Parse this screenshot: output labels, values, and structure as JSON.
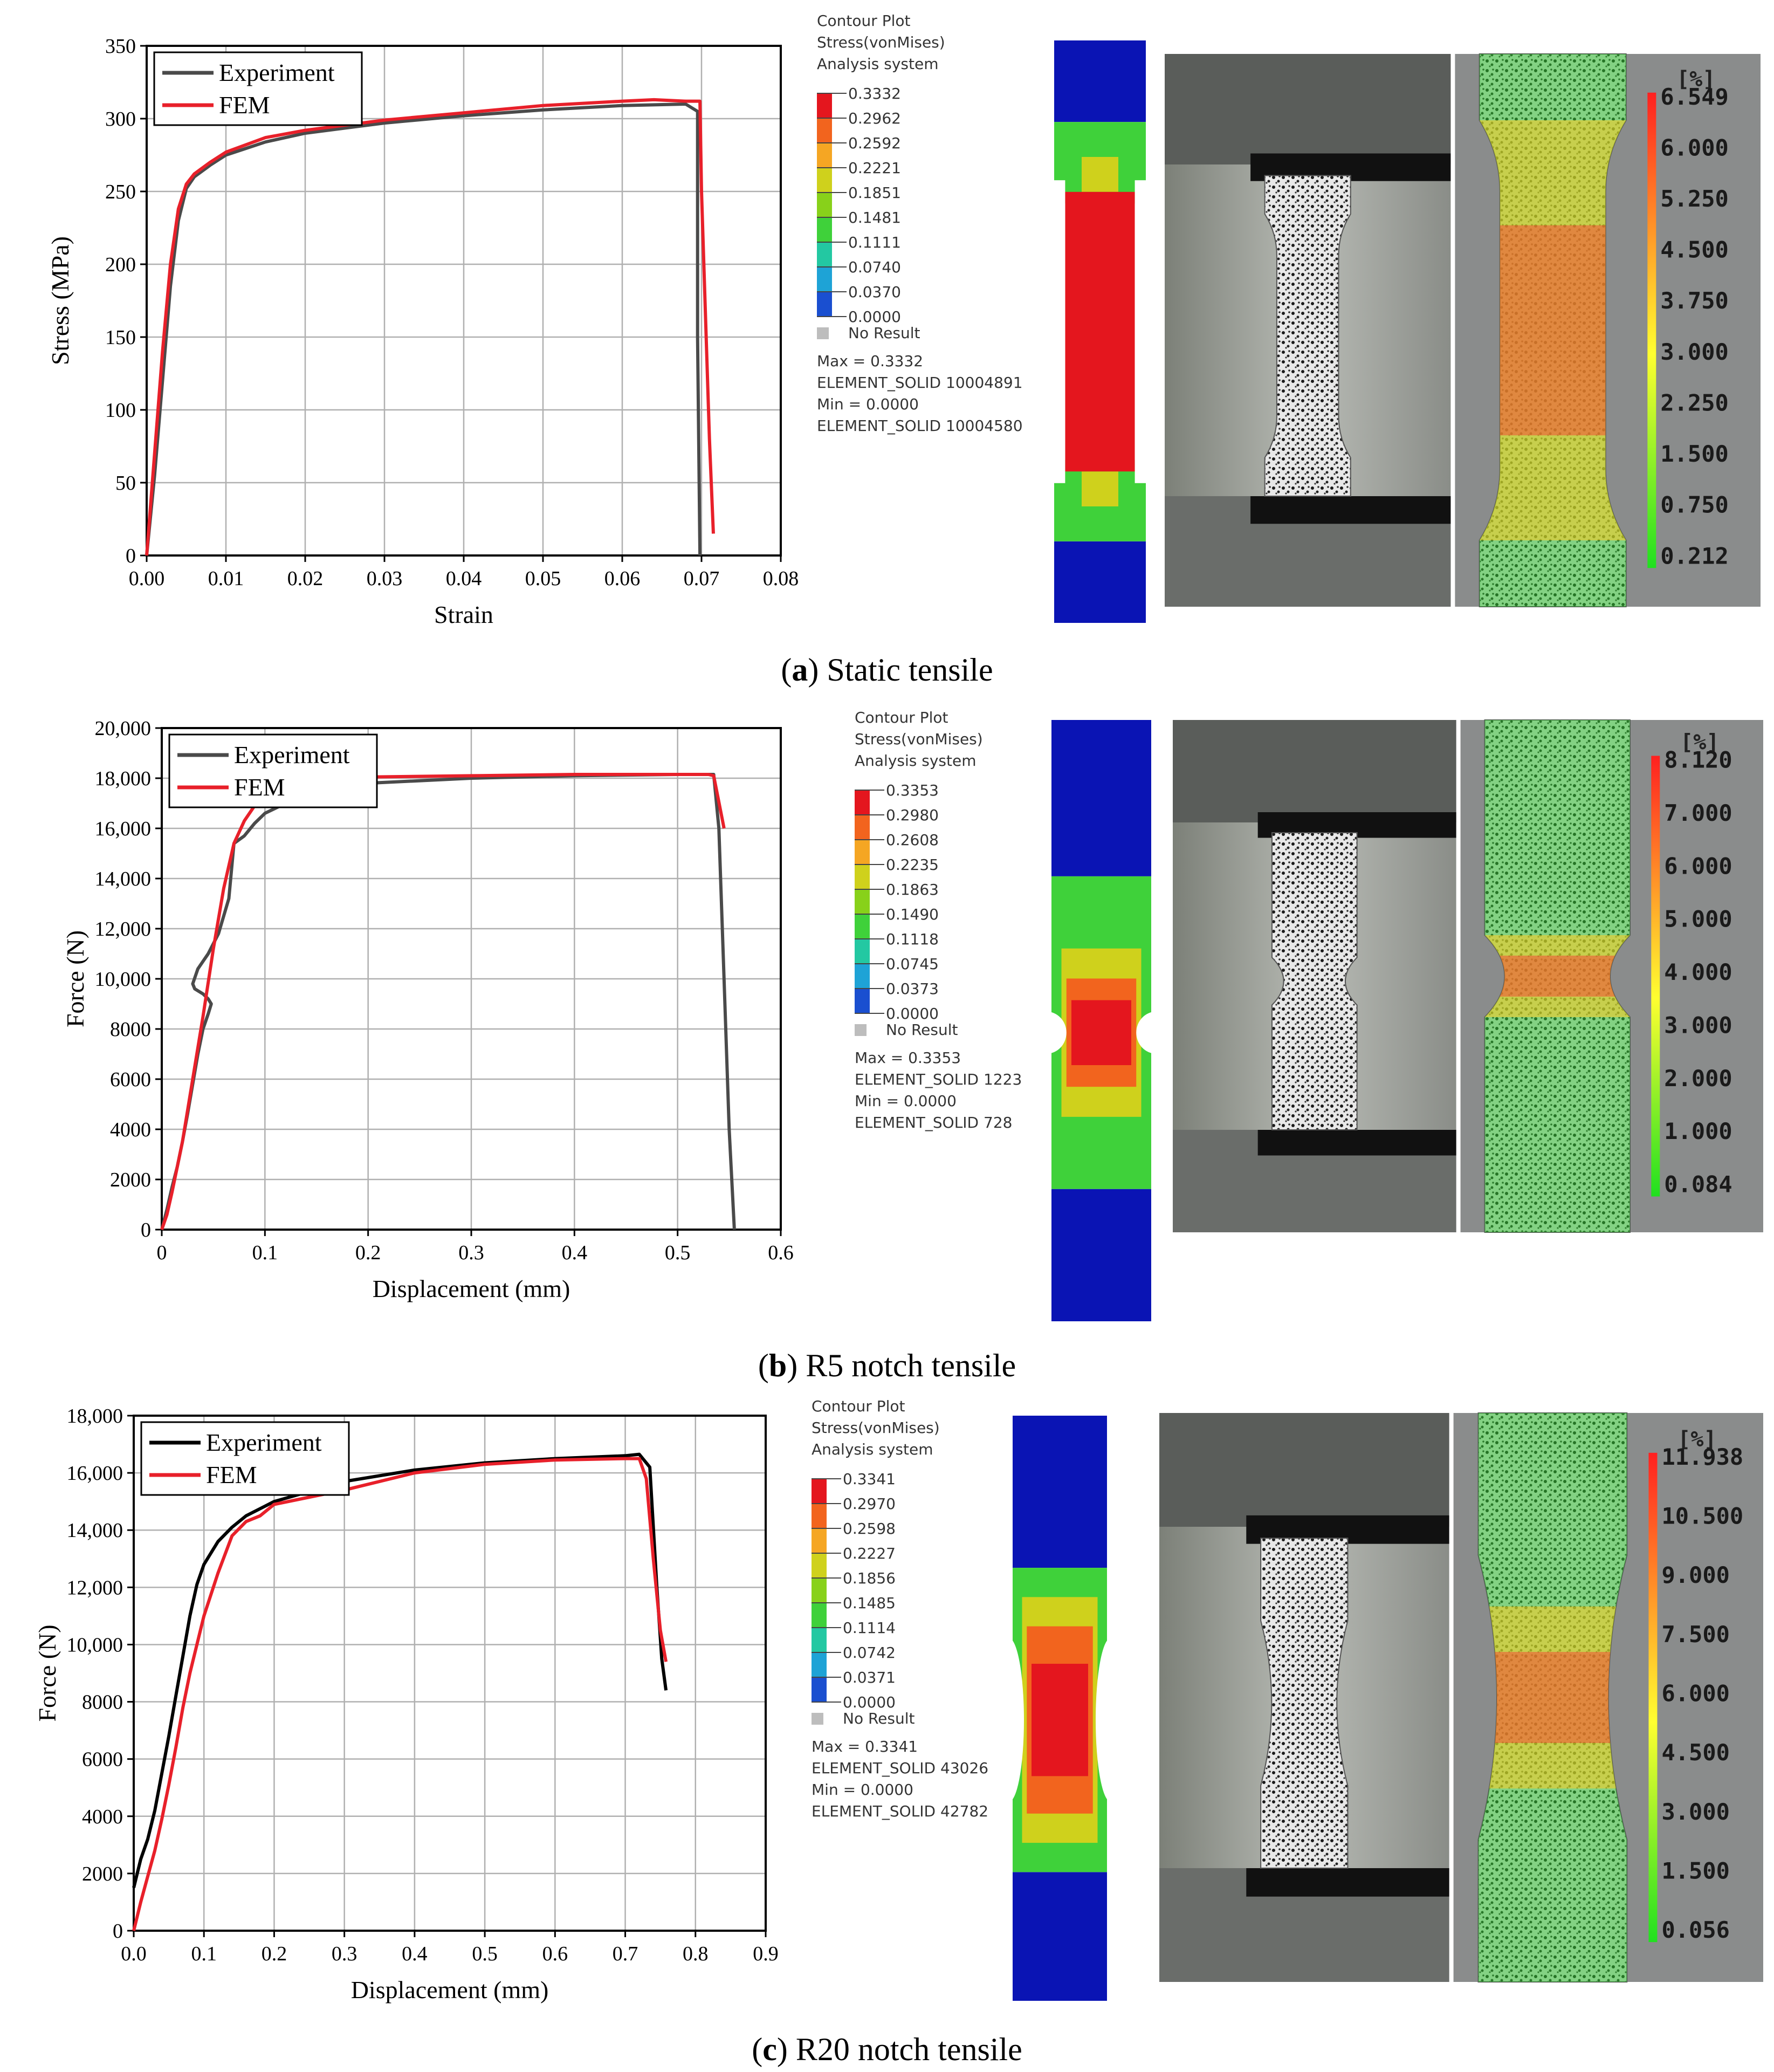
{
  "panels": [
    {
      "caption": {
        "letter": "a",
        "text": ") Static tensile",
        "open": "("
      },
      "chart_data": {
        "type": "line",
        "xlabel": "Strain",
        "ylabel": "Stress (MPa)",
        "xlim": [
          0,
          0.08
        ],
        "ylim": [
          0,
          350
        ],
        "xticks": [
          "0.00",
          "0.01",
          "0.02",
          "0.03",
          "0.04",
          "0.05",
          "0.06",
          "0.07",
          "0.08"
        ],
        "yticks": [
          "0",
          "50",
          "100",
          "150",
          "200",
          "250",
          "300",
          "350"
        ],
        "grid": true,
        "legend": "top-left",
        "series": [
          {
            "name": "Experiment",
            "color": "#4a4a4a",
            "x": [
              0,
              0.001,
              0.002,
              0.003,
              0.004,
              0.005,
              0.006,
              0.008,
              0.01,
              0.015,
              0.02,
              0.03,
              0.04,
              0.05,
              0.06,
              0.068,
              0.0695,
              0.0695,
              0.0698
            ],
            "y": [
              0,
              55,
              120,
              185,
              230,
              252,
              260,
              268,
              275,
              284,
              290,
              297,
              302,
              306,
              309,
              310,
              305,
              150,
              0
            ]
          },
          {
            "name": "FEM",
            "color": "#e8202a",
            "x": [
              0,
              0.001,
              0.002,
              0.003,
              0.004,
              0.005,
              0.006,
              0.008,
              0.01,
              0.015,
              0.02,
              0.03,
              0.04,
              0.05,
              0.06,
              0.064,
              0.068,
              0.0698,
              0.07,
              0.071,
              0.0715
            ],
            "y": [
              0,
              70,
              140,
              200,
              238,
              255,
              262,
              270,
              277,
              287,
              292,
              299,
              304,
              309,
              312,
              313,
              312,
              312,
              250,
              80,
              15
            ]
          }
        ]
      },
      "contour": {
        "title": "Contour Plot",
        "subtitle": "Stress(vonMises)",
        "system": "Analysis system",
        "values": [
          "0.3332",
          "0.2962",
          "0.2592",
          "0.2221",
          "0.1851",
          "0.1481",
          "0.1111",
          "0.0740",
          "0.0370",
          "0.0000"
        ],
        "no_result": "No Result",
        "max": "Max = 0.3332",
        "max_el": "ELEMENT_SOLID 10004891",
        "min": "Min = 0.0000",
        "min_el": "ELEMENT_SOLID 10004580"
      },
      "dic": {
        "unit": "[%]",
        "values": [
          "6.549",
          "6.000",
          "5.250",
          "4.500",
          "3.750",
          "3.000",
          "2.250",
          "1.500",
          "0.750",
          "0.212"
        ]
      }
    },
    {
      "caption": {
        "letter": "b",
        "text": ") R5 notch tensile",
        "open": "("
      },
      "chart_data": {
        "type": "line",
        "xlabel": "Displacement (mm)",
        "ylabel": "Force (N)",
        "xlim": [
          0,
          0.6
        ],
        "ylim": [
          0,
          20000
        ],
        "xticks": [
          "0",
          "0.1",
          "0.2",
          "0.3",
          "0.4",
          "0.5",
          "0.6"
        ],
        "yticks": [
          "0",
          "2000",
          "4000",
          "6000",
          "8000",
          "10,000",
          "12,000",
          "14,000",
          "16,000",
          "18,000",
          "20,000"
        ],
        "grid": true,
        "legend": "top-left",
        "series": [
          {
            "name": "Experiment",
            "color": "#4a4a4a",
            "x": [
              0,
              0.005,
              0.01,
              0.015,
              0.02,
              0.025,
              0.03,
              0.035,
              0.04,
              0.045,
              0.048,
              0.045,
              0.04,
              0.032,
              0.03,
              0.035,
              0.045,
              0.055,
              0.065,
              0.07,
              0.08,
              0.09,
              0.1,
              0.12,
              0.15,
              0.2,
              0.3,
              0.4,
              0.5,
              0.535,
              0.54,
              0.545,
              0.55,
              0.555
            ],
            "y": [
              0,
              800,
              1700,
              2500,
              3500,
              4600,
              5800,
              7000,
              8000,
              8600,
              9000,
              9200,
              9400,
              9600,
              9800,
              10400,
              11000,
              11800,
              13200,
              15400,
              15700,
              16200,
              16600,
              17000,
              17400,
              17800,
              18000,
              18100,
              18150,
              18150,
              16000,
              10000,
              4000,
              0
            ]
          },
          {
            "name": "FEM",
            "color": "#e8202a",
            "x": [
              0,
              0.005,
              0.01,
              0.02,
              0.03,
              0.04,
              0.05,
              0.06,
              0.07,
              0.08,
              0.09,
              0.1,
              0.12,
              0.15,
              0.2,
              0.3,
              0.4,
              0.5,
              0.53,
              0.535,
              0.545
            ],
            "y": [
              0,
              600,
              1500,
              3500,
              6000,
              8500,
              11200,
              13600,
              15400,
              16300,
              16900,
              17300,
              17700,
              17900,
              18050,
              18100,
              18150,
              18150,
              18150,
              18100,
              16000
            ]
          }
        ]
      },
      "contour": {
        "title": "Contour Plot",
        "subtitle": "Stress(vonMises)",
        "system": "Analysis system",
        "values": [
          "0.3353",
          "0.2980",
          "0.2608",
          "0.2235",
          "0.1863",
          "0.1490",
          "0.1118",
          "0.0745",
          "0.0373",
          "0.0000"
        ],
        "no_result": "No Result",
        "max": "Max = 0.3353",
        "max_el": "ELEMENT_SOLID 1223",
        "min": "Min = 0.0000",
        "min_el": "ELEMENT_SOLID 728"
      },
      "dic": {
        "unit": "[%]",
        "values": [
          "8.120",
          "7.000",
          "6.000",
          "5.000",
          "4.000",
          "3.000",
          "2.000",
          "1.000",
          "0.084"
        ]
      }
    },
    {
      "caption": {
        "letter": "c",
        "text": ") R20 notch tensile",
        "open": "("
      },
      "chart_data": {
        "type": "line",
        "xlabel": "Displacement (mm)",
        "ylabel": "Force (N)",
        "xlim": [
          0,
          0.9
        ],
        "ylim": [
          0,
          18000
        ],
        "xticks": [
          "0.0",
          "0.1",
          "0.2",
          "0.3",
          "0.4",
          "0.5",
          "0.6",
          "0.7",
          "0.8",
          "0.9"
        ],
        "yticks": [
          "0",
          "2000",
          "4000",
          "6000",
          "8000",
          "10,000",
          "12,000",
          "14,000",
          "16,000",
          "18,000"
        ],
        "grid": true,
        "legend": "top-left",
        "series": [
          {
            "name": "Experiment",
            "color": "#000000",
            "x": [
              0,
              0.005,
              0.01,
              0.02,
              0.03,
              0.04,
              0.05,
              0.06,
              0.07,
              0.08,
              0.09,
              0.1,
              0.11,
              0.12,
              0.14,
              0.16,
              0.2,
              0.3,
              0.4,
              0.5,
              0.6,
              0.7,
              0.72,
              0.735,
              0.745,
              0.752,
              0.758
            ],
            "y": [
              1500,
              2000,
              2500,
              3200,
              4200,
              5500,
              6800,
              8200,
              9600,
              11000,
              12100,
              12800,
              13200,
              13600,
              14100,
              14500,
              15000,
              15700,
              16100,
              16350,
              16500,
              16600,
              16650,
              16200,
              12000,
              9500,
              8400
            ]
          },
          {
            "name": "FEM",
            "color": "#e8202a",
            "x": [
              0,
              0.005,
              0.01,
              0.02,
              0.03,
              0.04,
              0.05,
              0.06,
              0.07,
              0.08,
              0.09,
              0.1,
              0.12,
              0.14,
              0.16,
              0.18,
              0.2,
              0.3,
              0.4,
              0.5,
              0.6,
              0.7,
              0.72,
              0.73,
              0.74,
              0.75,
              0.758
            ],
            "y": [
              0,
              500,
              1000,
              1900,
              2800,
              3900,
              5100,
              6400,
              7800,
              9000,
              10000,
              11000,
              12500,
              13800,
              14300,
              14500,
              14900,
              15400,
              16000,
              16300,
              16450,
              16500,
              16500,
              15800,
              13000,
              10500,
              9400
            ]
          }
        ]
      },
      "contour": {
        "title": "Contour Plot",
        "subtitle": "Stress(vonMises)",
        "system": "Analysis system",
        "values": [
          "0.3341",
          "0.2970",
          "0.2598",
          "0.2227",
          "0.1856",
          "0.1485",
          "0.1114",
          "0.0742",
          "0.0371",
          "0.0000"
        ],
        "no_result": "No Result",
        "max": "Max = 0.3341",
        "max_el": "ELEMENT_SOLID 43026",
        "min": "Min = 0.0000",
        "min_el": "ELEMENT_SOLID 42782"
      },
      "dic": {
        "unit": "[%]",
        "values": [
          "11.938",
          "10.500",
          "9.000",
          "7.500",
          "6.000",
          "4.500",
          "3.000",
          "1.500",
          "0.056"
        ]
      }
    }
  ],
  "colors": {
    "contour_scale": [
      "#e4161e",
      "#f2641e",
      "#f5a623",
      "#cfd11c",
      "#88d11a",
      "#3fd13a",
      "#23c8a2",
      "#1ea3d6",
      "#1a4fd0",
      "#0a10b8"
    ],
    "dic_scale_top": "#ff2020",
    "dic_scale_mid": "#ffff30",
    "dic_scale_bottom": "#20e020"
  }
}
